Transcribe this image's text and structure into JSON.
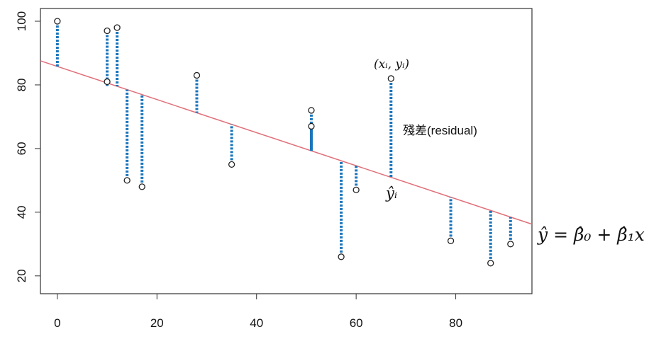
{
  "chart_data": {
    "type": "scatter",
    "x": [
      0,
      10,
      10,
      12,
      14,
      17,
      28,
      35,
      51,
      51,
      57,
      60,
      67,
      79,
      87,
      91
    ],
    "values": [
      100,
      97,
      81,
      98,
      50,
      48,
      83,
      55,
      72,
      67,
      26,
      47,
      82,
      31,
      24,
      30
    ],
    "color": "#222222",
    "line": {
      "intercept": 85.8,
      "slope": -0.52,
      "color": "#e0707a"
    },
    "residual_color": "#1a75bc",
    "xlim": [
      -3.4,
      95.3
    ],
    "ylim": [
      14.4,
      104
    ],
    "xticks": [
      0,
      20,
      40,
      60,
      80
    ],
    "yticks": [
      20,
      40,
      60,
      80,
      100
    ],
    "annotations": {
      "point_label": "(xᵢ, yᵢ)",
      "residual_label": "殘差(residual)",
      "fitted_label": "ŷᵢ",
      "equation": "ŷ  = β̂₀ + β̂₁x"
    }
  }
}
